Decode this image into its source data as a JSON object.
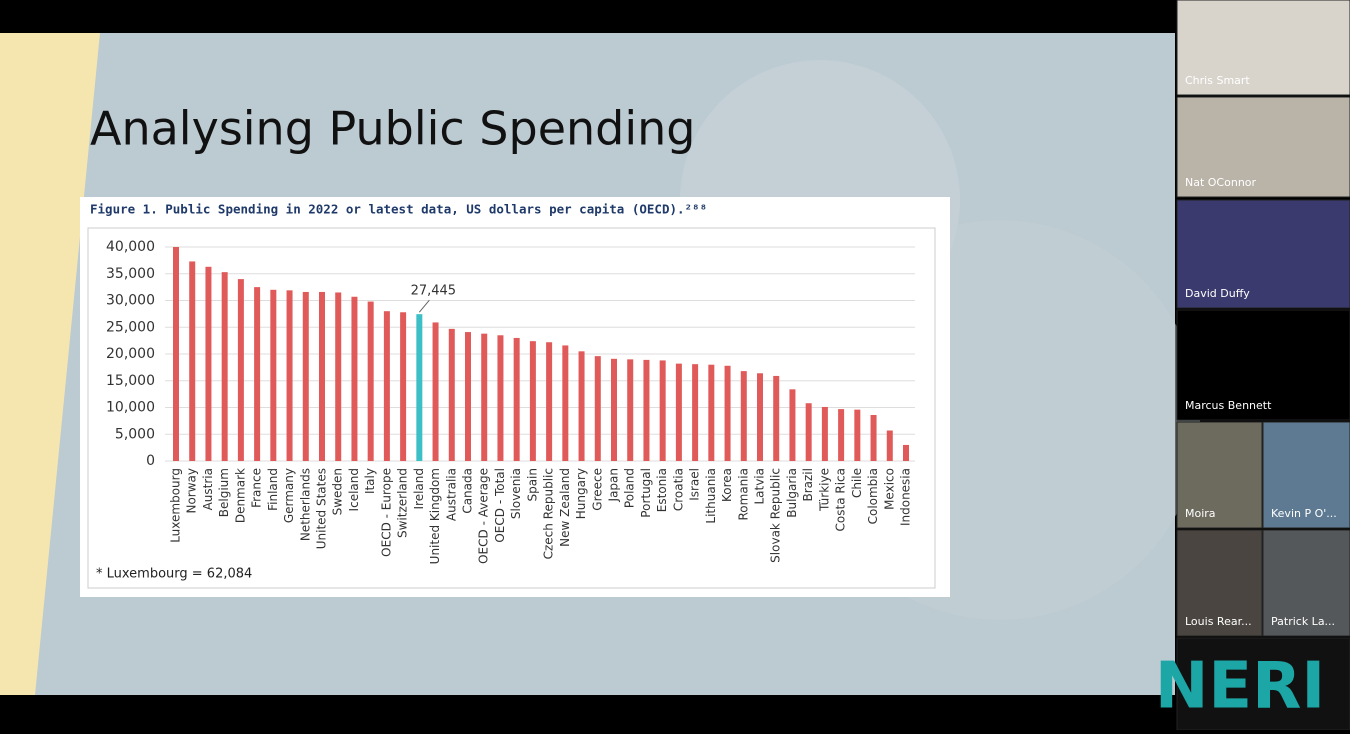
{
  "slide": {
    "title": "Analysing Public Spending"
  },
  "chart_data": {
    "type": "bar",
    "title": "Figure 1. Public Spending in 2022 or latest data, US dollars per capita (OECD).²⁸⁸",
    "categories": [
      "Luxembourg",
      "Norway",
      "Austria",
      "Belgium",
      "Denmark",
      "France",
      "Finland",
      "Germany",
      "Netherlands",
      "United States",
      "Sweden",
      "Iceland",
      "Italy",
      "OECD - Europe",
      "Switzerland",
      "Ireland",
      "United Kingdom",
      "Australia",
      "Canada",
      "OECD - Average",
      "OECD - Total",
      "Slovenia",
      "Spain",
      "Czech Republic",
      "New Zealand",
      "Hungary",
      "Greece",
      "Japan",
      "Poland",
      "Portugal",
      "Estonia",
      "Croatia",
      "Israel",
      "Lithuania",
      "Korea",
      "Romania",
      "Latvia",
      "Slovak Republic",
      "Bulgaria",
      "Brazil",
      "Türkiye",
      "Costa Rica",
      "Chile",
      "Colombia",
      "Mexico",
      "Indonesia"
    ],
    "values": [
      40000,
      37300,
      36300,
      35300,
      34000,
      32500,
      32000,
      31900,
      31600,
      31600,
      31500,
      30700,
      29800,
      28000,
      27800,
      27445,
      25900,
      24700,
      24100,
      23800,
      23500,
      23000,
      22400,
      22200,
      21600,
      20500,
      19600,
      19100,
      19000,
      18900,
      18800,
      18200,
      18100,
      18000,
      17800,
      16800,
      16400,
      15900,
      13400,
      10800,
      10100,
      9700,
      9600,
      8600,
      5700,
      3000
    ],
    "color": "#e05a5a",
    "highlight": {
      "category": "Ireland",
      "color": "#3cbfc6",
      "label": "27,445"
    },
    "ylim": [
      0,
      40000
    ],
    "yticks": [
      0,
      {
        "value": 5000,
        "label": "5,000"
      },
      {
        "value": 10000,
        "label": "10,000"
      },
      {
        "value": 15000,
        "label": "15,000"
      },
      {
        "value": 20000,
        "label": "20,000"
      },
      {
        "value": 25000,
        "label": "25,000"
      },
      {
        "value": 30000,
        "label": "30,000"
      },
      {
        "value": 35000,
        "label": "35,000"
      },
      {
        "value": 40000,
        "label": "40,000"
      }
    ],
    "grid": true,
    "footnote": "* Luxembourg = 62,084"
  },
  "participants": [
    "Chris Smart",
    "Nat OConnor",
    "David Duffy",
    "Marcus Bennett",
    "Moira",
    "Kevin P O'...",
    "Louis Rear...",
    "Patrick La..."
  ],
  "logo": "NERI"
}
